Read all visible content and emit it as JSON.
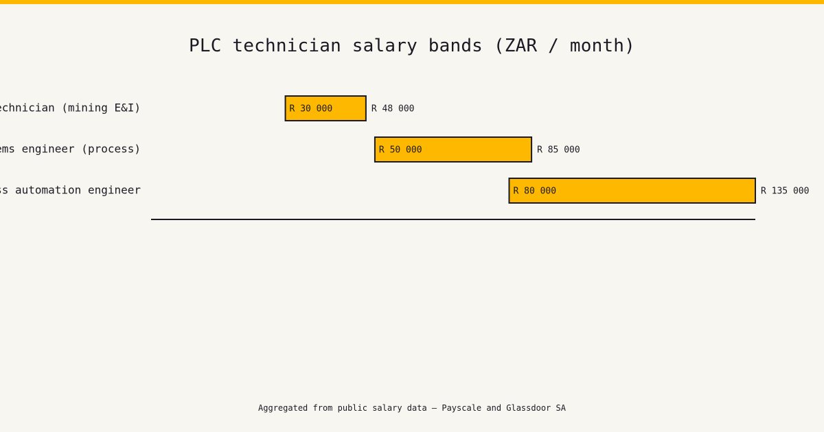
{
  "colors": {
    "accent": "#ffb800",
    "background": "#f7f6f0",
    "text": "#1a1a24"
  },
  "chart_data": {
    "type": "bar",
    "subtype": "floating-range-horizontal",
    "title": "PLC technician salary bands (ZAR / month)",
    "xlabel": "",
    "ylabel": "",
    "categories": [
      "PLC technician (mining E&I)",
      "Control systems engineer (process)",
      "Senior process automation engineer"
    ],
    "series": [
      {
        "low": [
          30000,
          50000,
          80000
        ],
        "high": [
          48000,
          85000,
          135000
        ]
      }
    ],
    "low_labels": [
      "R 30 000",
      "R 50 000",
      "R 80 000"
    ],
    "high_labels": [
      "R 48 000",
      "R 85 000",
      "R 135 000"
    ],
    "xlim": [
      0,
      135000
    ],
    "grid": false,
    "legend": "none"
  },
  "footer": {
    "source": "Aggregated from public salary data — Payscale and Glassdoor SA"
  }
}
